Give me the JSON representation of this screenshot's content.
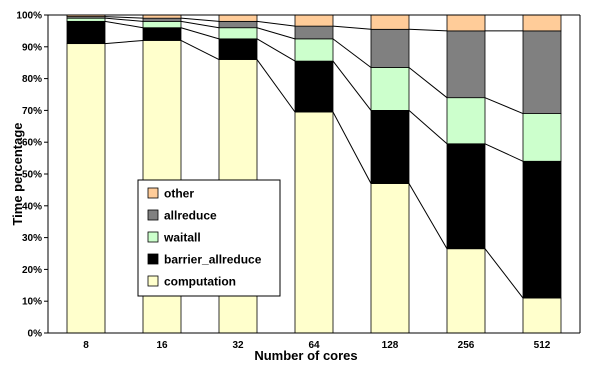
{
  "chart_data": {
    "type": "bar",
    "stacked": true,
    "normalized": true,
    "categories": [
      "8",
      "16",
      "32",
      "64",
      "128",
      "256",
      "512"
    ],
    "series": [
      {
        "name": "computation",
        "color": "#FFFFCC",
        "values": [
          91,
          92,
          86,
          69.5,
          47,
          26.5,
          11
        ]
      },
      {
        "name": "barrier_allreduce",
        "color": "#000000",
        "values": [
          7,
          4,
          6.5,
          16,
          23,
          33,
          43
        ]
      },
      {
        "name": "waitall",
        "color": "#CCFFCC",
        "values": [
          1,
          2,
          3.5,
          7,
          13.5,
          14.5,
          15
        ]
      },
      {
        "name": "allreduce",
        "color": "#808080",
        "values": [
          0.5,
          1,
          2,
          4,
          12,
          21,
          26
        ]
      },
      {
        "name": "other",
        "color": "#FFCC99",
        "values": [
          0.5,
          1,
          2,
          3.5,
          4.5,
          5,
          5
        ]
      }
    ],
    "xlabel": "Number of cores",
    "ylabel": "Time percentage",
    "ylim": [
      0,
      100
    ],
    "yticks": [
      "0%",
      "10%",
      "20%",
      "30%",
      "40%",
      "50%",
      "60%",
      "70%",
      "80%",
      "90%",
      "100%"
    ],
    "grid": false,
    "legend": {
      "placement": "left-center",
      "order": [
        "other",
        "allreduce",
        "waitall",
        "barrier_allreduce",
        "computation"
      ]
    },
    "connector_lines": true
  }
}
